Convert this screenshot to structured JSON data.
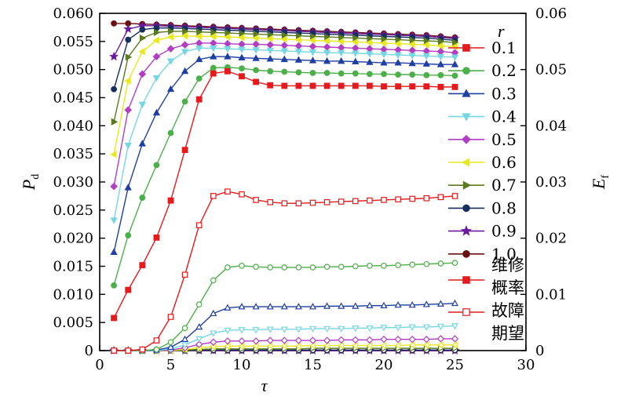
{
  "chart_data": {
    "type": "line",
    "title": "",
    "xlabel": "τ",
    "ylabel_left": {
      "main": "P",
      "sub": "d"
    },
    "ylabel_right": {
      "main": "E",
      "sub": "f"
    },
    "xlim": [
      0,
      30
    ],
    "ylim_left": [
      0,
      0.06
    ],
    "ylim_right": [
      0,
      0.06
    ],
    "x_ticks": [
      "0",
      "5",
      "10",
      "15",
      "20",
      "25",
      "30"
    ],
    "y_ticks_left": [
      "0",
      "0.005",
      "0.010",
      "0.015",
      "0.020",
      "0.025",
      "0.030",
      "0.035",
      "0.040",
      "0.045",
      "0.050",
      "0.055",
      "0.060"
    ],
    "y_ticks_right": [
      "0",
      "0.01",
      "0.02",
      "0.03",
      "0.04",
      "0.05",
      "0.06"
    ],
    "x": [
      1,
      2,
      3,
      4,
      5,
      6,
      7,
      8,
      9,
      10,
      11,
      12,
      13,
      14,
      15,
      16,
      17,
      18,
      19,
      20,
      21,
      22,
      23,
      24,
      25
    ],
    "legend": {
      "title": "r",
      "placement": "right",
      "entries": [
        "0.1",
        "0.2",
        "0.3",
        "0.4",
        "0.5",
        "0.6",
        "0.7",
        "0.8",
        "0.9",
        "1.0"
      ],
      "type_labels": [
        {
          "lines": [
            "维修",
            "概率"
          ],
          "style": "filled"
        },
        {
          "lines": [
            "故障",
            "期望"
          ],
          "style": "hollow"
        }
      ]
    },
    "series": [
      {
        "name": "0.1",
        "color": "#e41a1c",
        "marker": "square",
        "pd": [
          0.0058,
          0.0108,
          0.0152,
          0.0201,
          0.0267,
          0.0357,
          0.0447,
          0.0493,
          0.0497,
          0.0488,
          0.0478,
          0.0472,
          0.0471,
          0.0471,
          0.0471,
          0.0471,
          0.0471,
          0.0471,
          0.0471,
          0.047,
          0.047,
          0.047,
          0.047,
          0.0469,
          0.0469
        ],
        "ef": [
          0.0,
          0.0,
          0.0002,
          0.0018,
          0.006,
          0.0135,
          0.0223,
          0.0275,
          0.0283,
          0.0278,
          0.0268,
          0.0264,
          0.0262,
          0.0262,
          0.0263,
          0.0264,
          0.0265,
          0.0266,
          0.0267,
          0.0268,
          0.0269,
          0.027,
          0.0271,
          0.0273,
          0.0275
        ]
      },
      {
        "name": "0.2",
        "color": "#4daf4a",
        "marker": "circle",
        "pd": [
          0.0116,
          0.0205,
          0.0272,
          0.033,
          0.0387,
          0.0443,
          0.0484,
          0.0503,
          0.0504,
          0.0502,
          0.0499,
          0.0497,
          0.0496,
          0.0495,
          0.0494,
          0.0494,
          0.0493,
          0.0493,
          0.0492,
          0.0492,
          0.0491,
          0.0491,
          0.049,
          0.049,
          0.0489
        ],
        "ef": [
          0.0,
          0.0,
          0.0,
          0.0002,
          0.0015,
          0.004,
          0.0082,
          0.0125,
          0.0148,
          0.0151,
          0.0149,
          0.0148,
          0.0148,
          0.0148,
          0.0148,
          0.0149,
          0.0149,
          0.015,
          0.0151,
          0.0151,
          0.0152,
          0.0153,
          0.0154,
          0.0155,
          0.0156
        ]
      },
      {
        "name": "0.3",
        "color": "#1f3fa3",
        "marker": "triangle-up",
        "pd": [
          0.0175,
          0.029,
          0.0368,
          0.0423,
          0.0465,
          0.0497,
          0.0518,
          0.0523,
          0.0523,
          0.0521,
          0.052,
          0.0519,
          0.0518,
          0.0517,
          0.0516,
          0.0515,
          0.0515,
          0.0514,
          0.0513,
          0.0512,
          0.0512,
          0.0511,
          0.051,
          0.0509,
          0.0509
        ],
        "ef": [
          0.0,
          0.0,
          0.0,
          0.0001,
          0.0006,
          0.002,
          0.0042,
          0.0066,
          0.0076,
          0.0078,
          0.0078,
          0.0078,
          0.0078,
          0.0078,
          0.0078,
          0.0079,
          0.0079,
          0.0079,
          0.008,
          0.008,
          0.0081,
          0.0081,
          0.0082,
          0.0083,
          0.0084
        ]
      },
      {
        "name": "0.4",
        "color": "#76d7e3",
        "marker": "triangle-down",
        "pd": [
          0.0232,
          0.0365,
          0.0438,
          0.0485,
          0.0515,
          0.0532,
          0.0538,
          0.0538,
          0.0537,
          0.0536,
          0.0535,
          0.0534,
          0.0533,
          0.0532,
          0.0531,
          0.053,
          0.053,
          0.0529,
          0.0528,
          0.0527,
          0.0526,
          0.0525,
          0.0524,
          0.0523,
          0.0522
        ],
        "ef": [
          0.0,
          0.0,
          0.0,
          0.0,
          0.0003,
          0.001,
          0.0021,
          0.0031,
          0.0036,
          0.0037,
          0.0037,
          0.0038,
          0.0038,
          0.0038,
          0.0039,
          0.0039,
          0.0039,
          0.004,
          0.004,
          0.0041,
          0.0041,
          0.0042,
          0.0042,
          0.0043,
          0.0044
        ]
      },
      {
        "name": "0.5",
        "color": "#b23ec4",
        "marker": "diamond",
        "pd": [
          0.0292,
          0.0428,
          0.0492,
          0.0523,
          0.0537,
          0.0544,
          0.0547,
          0.0547,
          0.0546,
          0.0545,
          0.0545,
          0.0544,
          0.0543,
          0.0542,
          0.0541,
          0.054,
          0.0539,
          0.0538,
          0.0537,
          0.0536,
          0.0535,
          0.0534,
          0.0533,
          0.0532,
          0.053
        ],
        "ef": [
          0.0,
          0.0,
          0.0,
          0.0,
          0.0001,
          0.0005,
          0.0011,
          0.0015,
          0.0017,
          0.0017,
          0.0017,
          0.0018,
          0.0018,
          0.0018,
          0.0018,
          0.0018,
          0.0019,
          0.0019,
          0.0019,
          0.002,
          0.002,
          0.002,
          0.002,
          0.0021,
          0.0021
        ]
      },
      {
        "name": "0.6",
        "color": "#e8e81e",
        "marker": "triangle-left",
        "pd": [
          0.0349,
          0.048,
          0.0532,
          0.0552,
          0.0558,
          0.056,
          0.0559,
          0.0559,
          0.0558,
          0.0557,
          0.0556,
          0.0555,
          0.0554,
          0.0553,
          0.0552,
          0.0551,
          0.055,
          0.0549,
          0.0548,
          0.0547,
          0.0546,
          0.0545,
          0.0544,
          0.0542,
          0.0541
        ],
        "ef": [
          0.0,
          0.0,
          0.0,
          0.0,
          0.0,
          0.0002,
          0.0005,
          0.0007,
          0.0008,
          0.0008,
          0.0008,
          0.0008,
          0.0008,
          0.0008,
          0.0009,
          0.0009,
          0.0009,
          0.0009,
          0.0009,
          0.0009,
          0.0009,
          0.001,
          0.001,
          0.001,
          0.001
        ]
      },
      {
        "name": "0.7",
        "color": "#5a7b22",
        "marker": "triangle-right",
        "pd": [
          0.0407,
          0.0522,
          0.0556,
          0.0566,
          0.0568,
          0.0568,
          0.0567,
          0.0566,
          0.0565,
          0.0564,
          0.0563,
          0.0562,
          0.0561,
          0.056,
          0.0559,
          0.0558,
          0.0557,
          0.0556,
          0.0555,
          0.0554,
          0.0553,
          0.0552,
          0.0551,
          0.055,
          0.0548
        ],
        "ef": [
          0.0,
          0.0,
          0.0,
          0.0,
          0.0,
          0.0001,
          0.0002,
          0.0003,
          0.0003,
          0.0003,
          0.0003,
          0.0003,
          0.0003,
          0.0003,
          0.0004,
          0.0004,
          0.0004,
          0.0004,
          0.0004,
          0.0004,
          0.0004,
          0.0004,
          0.0004,
          0.0004,
          0.0004
        ]
      },
      {
        "name": "0.8",
        "color": "#162f5e",
        "marker": "circle",
        "pd": [
          0.0465,
          0.0553,
          0.0571,
          0.0574,
          0.0574,
          0.0573,
          0.0572,
          0.0571,
          0.057,
          0.0569,
          0.0568,
          0.0567,
          0.0566,
          0.0565,
          0.0564,
          0.0563,
          0.0562,
          0.0561,
          0.056,
          0.0559,
          0.0558,
          0.0557,
          0.0556,
          0.0554,
          0.0552
        ],
        "ef": [
          0.0,
          0.0,
          0.0,
          0.0,
          0.0,
          0.0,
          0.0001,
          0.0001,
          0.0001,
          0.0001,
          0.0001,
          0.0001,
          0.0001,
          0.0001,
          0.0001,
          0.0001,
          0.0001,
          0.0001,
          0.0001,
          0.0001,
          0.0001,
          0.0001,
          0.0001,
          0.0001,
          0.0001
        ]
      },
      {
        "name": "0.9",
        "color": "#6a1b9a",
        "marker": "star",
        "pd": [
          0.0523,
          0.0572,
          0.0578,
          0.0578,
          0.0577,
          0.0576,
          0.0575,
          0.0574,
          0.0573,
          0.0572,
          0.0571,
          0.057,
          0.0569,
          0.0568,
          0.0567,
          0.0566,
          0.0565,
          0.0564,
          0.0563,
          0.0562,
          0.0561,
          0.056,
          0.0559,
          0.0557,
          0.0555
        ],
        "ef": [
          0.0,
          0.0,
          0.0,
          0.0,
          0.0,
          0.0,
          0.0,
          0.0,
          0.0,
          0.0,
          0.0,
          0.0,
          0.0,
          0.0,
          0.0,
          0.0,
          0.0,
          0.0,
          0.0,
          0.0,
          0.0,
          0.0,
          0.0,
          0.0,
          0.0
        ]
      },
      {
        "name": "1.0",
        "color": "#6b0f0f",
        "marker": "circle",
        "pd": [
          0.0582,
          0.0582,
          0.0581,
          0.058,
          0.0579,
          0.0578,
          0.0577,
          0.0576,
          0.0575,
          0.0574,
          0.0573,
          0.0572,
          0.0571,
          0.057,
          0.0569,
          0.0568,
          0.0567,
          0.0566,
          0.0565,
          0.0564,
          0.0563,
          0.0562,
          0.0561,
          0.0559,
          0.0557
        ],
        "ef": [
          0.0,
          0.0,
          0.0,
          0.0,
          0.0,
          0.0,
          0.0,
          0.0,
          0.0,
          0.0,
          0.0,
          0.0,
          0.0,
          0.0,
          0.0,
          0.0,
          0.0,
          0.0,
          0.0,
          0.0,
          0.0,
          0.0,
          0.0,
          0.0,
          0.0
        ]
      }
    ]
  }
}
